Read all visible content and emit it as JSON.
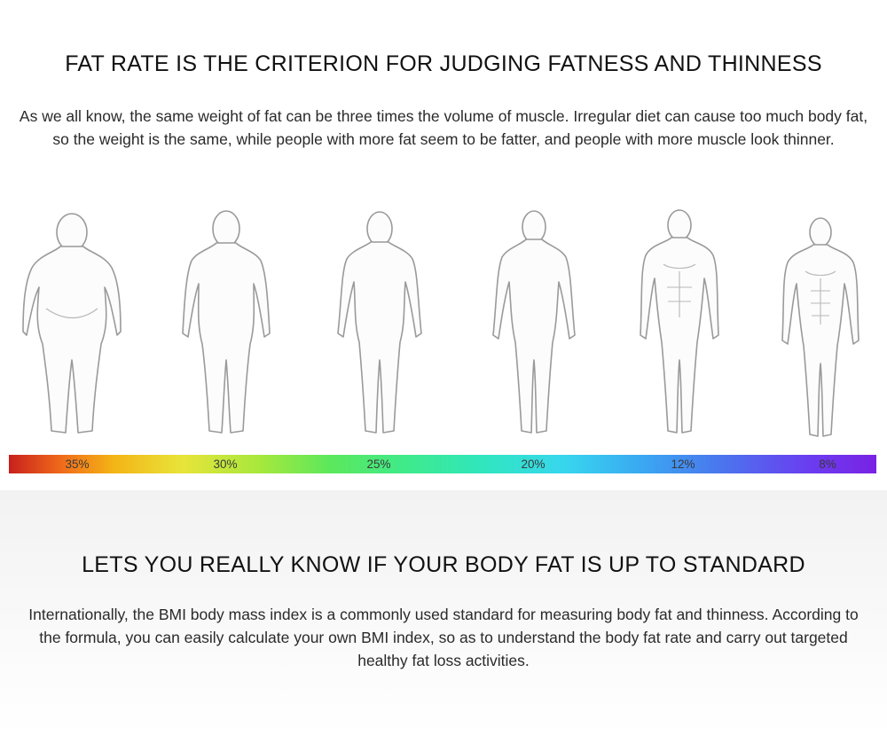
{
  "section_fat_rate": {
    "title": "FAT RATE IS THE CRITERION FOR JUDGING FATNESS AND THINNESS",
    "description": "As we all know, the same weight of fat can be three times the volume of muscle. Irregular diet can cause too much body fat, so the weight is the same, while people with more fat seem to be fatter, and people with more muscle look thinner."
  },
  "fat_scale": {
    "labels": [
      "35%",
      "30%",
      "25%",
      "20%",
      "12%",
      "8%"
    ],
    "gradient_colors": [
      "#c8201c",
      "#f4b416",
      "#a6e83c",
      "#3eea8c",
      "#38d6ee",
      "#4a76ee",
      "#7a22e4"
    ]
  },
  "section_standard": {
    "title": "LETS YOU REALLY KNOW IF YOUR BODY FAT IS UP TO STANDARD",
    "description": "Internationally, the BMI body mass index is a commonly used standard for measuring body fat and thinness. According to the formula, you can easily calculate your own BMI index, so as to understand the body fat rate and carry out targeted healthy fat loss activities."
  }
}
